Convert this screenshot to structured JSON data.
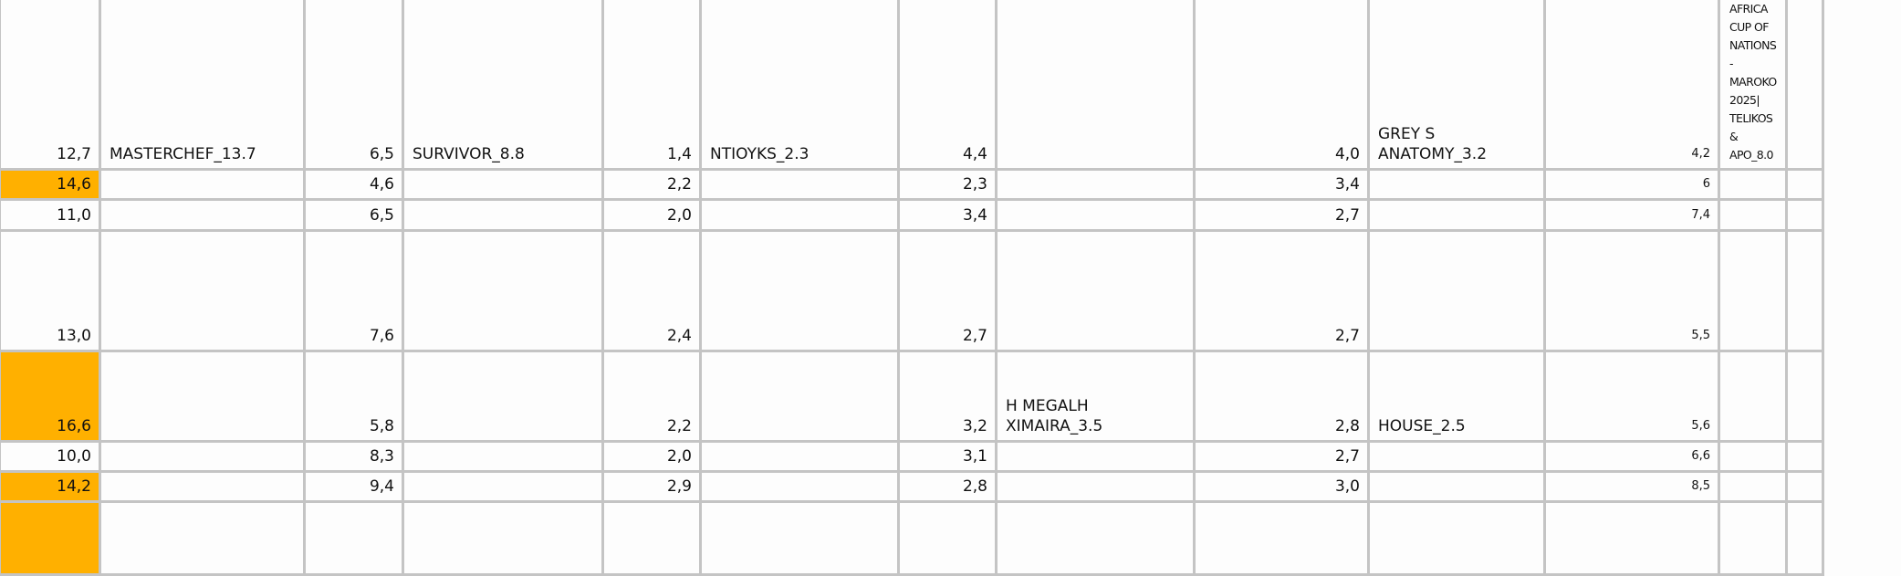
{
  "highlight_color": "#ffb000",
  "rows": [
    {
      "cells": [
        "12,7",
        "MASTERCHEF_13.7",
        "6,5",
        "SURVIVOR_8.8",
        "1,4",
        "NTIOYKS_2.3",
        "4,4",
        "",
        "4,0",
        "GREY S ANATOMY_3.2",
        "4,2",
        "AFRICA CUP OF NATIONS - MAROKO 2025| TELIKOS & APO_8.0"
      ],
      "highlight": false
    },
    {
      "cells": [
        "14,6",
        "",
        "4,6",
        "",
        "2,2",
        "",
        "2,3",
        "",
        "3,4",
        "",
        "6",
        ""
      ],
      "highlight": true
    },
    {
      "cells": [
        "11,0",
        "",
        "6,5",
        "",
        "2,0",
        "",
        "3,4",
        "",
        "2,7",
        "",
        "7,4",
        ""
      ],
      "highlight": false
    },
    {
      "cells": [
        "13,0",
        "",
        "7,6",
        "",
        "2,4",
        "",
        "2,7",
        "",
        "2,7",
        "",
        "5,5",
        ""
      ],
      "highlight": false
    },
    {
      "cells": [
        "16,6",
        "",
        "5,8",
        "",
        "2,2",
        "",
        "3,2",
        "H MEGALH XIMAIRA_3.5",
        "2,8",
        "HOUSE_2.5",
        "5,6",
        ""
      ],
      "highlight": true
    },
    {
      "cells": [
        "10,0",
        "",
        "8,3",
        "",
        "2,0",
        "",
        "3,1",
        "",
        "2,7",
        "",
        "6,6",
        ""
      ],
      "highlight": false
    },
    {
      "cells": [
        "14,2",
        "",
        "9,4",
        "",
        "2,9",
        "",
        "2,8",
        "",
        "3,0",
        "",
        "8,5",
        ""
      ],
      "highlight": true
    },
    {
      "cells": [
        "",
        "",
        "",
        "",
        "",
        "",
        "",
        "",
        "",
        "",
        "",
        ""
      ],
      "highlight": true
    }
  ]
}
